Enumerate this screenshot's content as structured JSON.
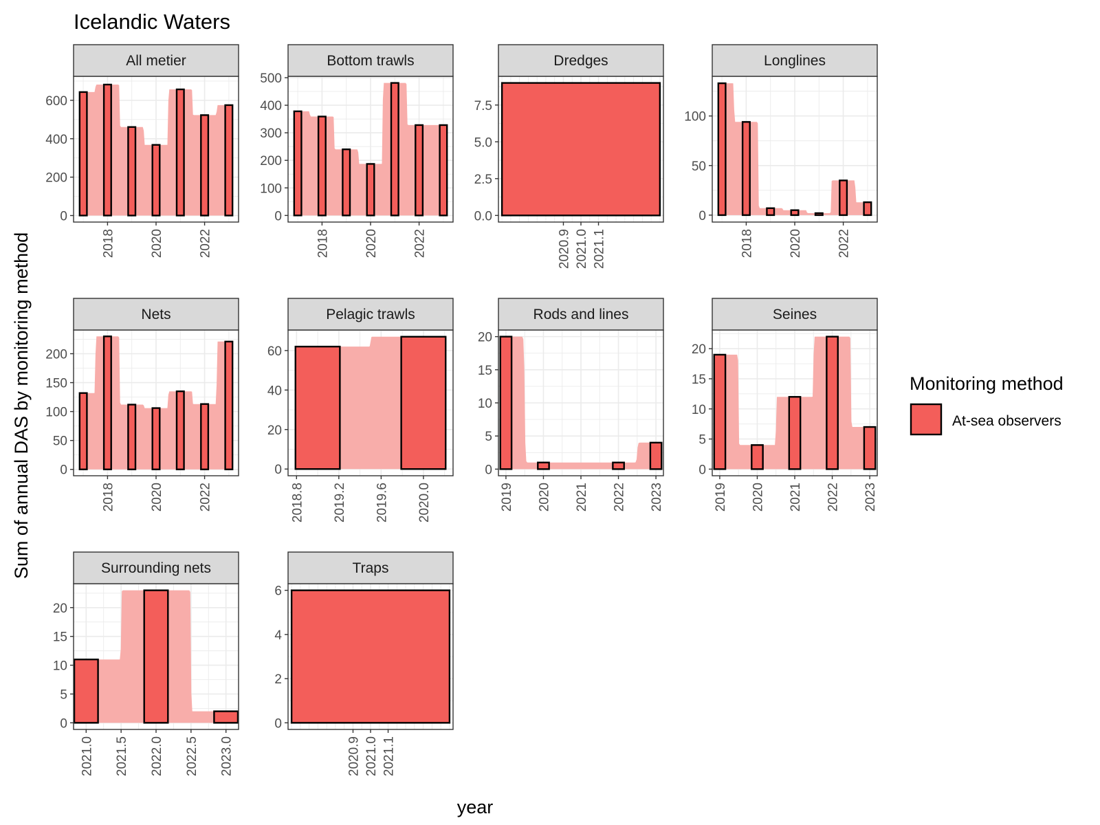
{
  "chart_data": {
    "type": "bar",
    "title": "Icelandic Waters",
    "xlabel": "year",
    "ylabel": "Sum of annual DAS by monitoring method",
    "legend": {
      "title": "Monitoring method",
      "entries": [
        "At-sea observers"
      ],
      "position": "right"
    },
    "colors": {
      "fill": "#F35E5A",
      "area": "#F8ADAA",
      "outline": "#000000",
      "strip": "#D9D9D9",
      "grid": "#EBEBEB",
      "panel_border": "#333333"
    },
    "panels": [
      {
        "name": "All metier",
        "x": [
          2017,
          2018,
          2019,
          2020,
          2021,
          2022,
          2023
        ],
        "y": [
          643,
          682,
          461,
          368,
          657,
          523,
          575
        ],
        "xlim": [
          2016.6,
          2023.4
        ],
        "ylim": [
          -34,
          725
        ],
        "xticks": [
          2018,
          2020,
          2022
        ],
        "xtick_labels": [
          "2018",
          "2020",
          "2022"
        ],
        "yticks": [
          0,
          200,
          400,
          600
        ],
        "ytick_labels": [
          "0",
          "200",
          "400",
          "600"
        ]
      },
      {
        "name": "Bottom trawls",
        "x": [
          2017,
          2018,
          2019,
          2020,
          2021,
          2022,
          2023
        ],
        "y": [
          378,
          359,
          240,
          187,
          481,
          328,
          328
        ],
        "xlim": [
          2016.6,
          2023.4
        ],
        "ylim": [
          -24,
          505
        ],
        "xticks": [
          2018,
          2020,
          2022
        ],
        "xtick_labels": [
          "2018",
          "2020",
          "2022"
        ],
        "yticks": [
          0,
          100,
          200,
          300,
          400,
          500
        ],
        "ytick_labels": [
          "0",
          "100",
          "200",
          "300",
          "400",
          "500"
        ]
      },
      {
        "name": "Dredges",
        "x": [
          2021
        ],
        "y": [
          9
        ],
        "bar_width": 0.9,
        "xlim": [
          2020.53,
          2021.47
        ],
        "ylim": [
          -0.45,
          9.45
        ],
        "xticks": [
          2020.9,
          2021.0,
          2021.1
        ],
        "xtick_labels": [
          "2020.9",
          "2021.0",
          "2021.1"
        ],
        "yticks": [
          0,
          2.5,
          5,
          7.5
        ],
        "ytick_labels": [
          "0.0",
          "2.5",
          "5.0",
          "7.5"
        ]
      },
      {
        "name": "Longlines",
        "x": [
          2017,
          2018,
          2019,
          2020,
          2021,
          2022,
          2023
        ],
        "y": [
          133,
          94,
          7,
          5,
          2,
          35,
          13
        ],
        "xlim": [
          2016.6,
          2023.4
        ],
        "ylim": [
          -7,
          140
        ],
        "xticks": [
          2018,
          2020,
          2022
        ],
        "xtick_labels": [
          "2018",
          "2020",
          "2022"
        ],
        "yticks": [
          0,
          50,
          100
        ],
        "ytick_labels": [
          "0",
          "50",
          "100"
        ]
      },
      {
        "name": "Nets",
        "x": [
          2017,
          2018,
          2019,
          2020,
          2021,
          2022,
          2023
        ],
        "y": [
          132,
          230,
          112,
          106,
          135,
          113,
          221
        ],
        "xlim": [
          2016.6,
          2023.4
        ],
        "ylim": [
          -11,
          241
        ],
        "xticks": [
          2018,
          2020,
          2022
        ],
        "xtick_labels": [
          "2018",
          "2020",
          "2022"
        ],
        "yticks": [
          0,
          50,
          100,
          150,
          200
        ],
        "ytick_labels": [
          "0",
          "50",
          "100",
          "150",
          "200"
        ]
      },
      {
        "name": "Pelagic trawls",
        "x": [
          2019,
          2020
        ],
        "y": [
          62,
          67
        ],
        "xlim": [
          2018.72,
          2020.28
        ],
        "ylim": [
          -3.4,
          70.4
        ],
        "xticks": [
          2018.8,
          2019.2,
          2019.6,
          2020.0
        ],
        "xtick_labels": [
          "2018.8",
          "2019.2",
          "2019.6",
          "2020.0"
        ],
        "yticks": [
          0,
          20,
          40,
          60
        ],
        "ytick_labels": [
          "0",
          "20",
          "40",
          "60"
        ]
      },
      {
        "name": "Rods and lines",
        "x": [
          2019,
          2020,
          2022,
          2023
        ],
        "y": [
          20,
          1,
          1,
          4
        ],
        "xlim": [
          2018.8,
          2023.2
        ],
        "ylim": [
          -1,
          21
        ],
        "xticks": [
          2019,
          2020,
          2021,
          2022,
          2023
        ],
        "xtick_labels": [
          "2019",
          "2020",
          "2021",
          "2022",
          "2023"
        ],
        "yticks": [
          0,
          5,
          10,
          15,
          20
        ],
        "ytick_labels": [
          "0",
          "5",
          "10",
          "15",
          "20"
        ]
      },
      {
        "name": "Seines",
        "x": [
          2019,
          2020,
          2021,
          2022,
          2023
        ],
        "y": [
          19,
          4,
          12,
          22,
          7
        ],
        "xlim": [
          2018.8,
          2023.2
        ],
        "ylim": [
          -1.1,
          23.1
        ],
        "xticks": [
          2019,
          2020,
          2021,
          2022,
          2023
        ],
        "xtick_labels": [
          "2019",
          "2020",
          "2021",
          "2022",
          "2023"
        ],
        "yticks": [
          0,
          5,
          10,
          15,
          20
        ],
        "ytick_labels": [
          "0",
          "5",
          "10",
          "15",
          "20"
        ]
      },
      {
        "name": "Surrounding nets",
        "x": [
          2021,
          2022,
          2023
        ],
        "y": [
          11,
          23,
          2
        ],
        "xlim": [
          2020.82,
          2023.18
        ],
        "ylim": [
          -1.15,
          24.15
        ],
        "xticks": [
          2021.0,
          2021.5,
          2022.0,
          2022.5,
          2023.0
        ],
        "xtick_labels": [
          "2021.0",
          "2021.5",
          "2022.0",
          "2022.5",
          "2023.0"
        ],
        "yticks": [
          0,
          5,
          10,
          15,
          20
        ],
        "ytick_labels": [
          "0",
          "5",
          "10",
          "15",
          "20"
        ]
      },
      {
        "name": "Traps",
        "x": [
          2021
        ],
        "y": [
          6
        ],
        "bar_width": 0.9,
        "xlim": [
          2020.53,
          2021.47
        ],
        "ylim": [
          -0.3,
          6.3
        ],
        "xticks": [
          2020.9,
          2021.0,
          2021.1
        ],
        "xtick_labels": [
          "2020.9",
          "2021.0",
          "2021.1"
        ],
        "yticks": [
          0,
          2,
          4,
          6
        ],
        "ytick_labels": [
          "0",
          "2",
          "4",
          "6"
        ]
      }
    ]
  }
}
